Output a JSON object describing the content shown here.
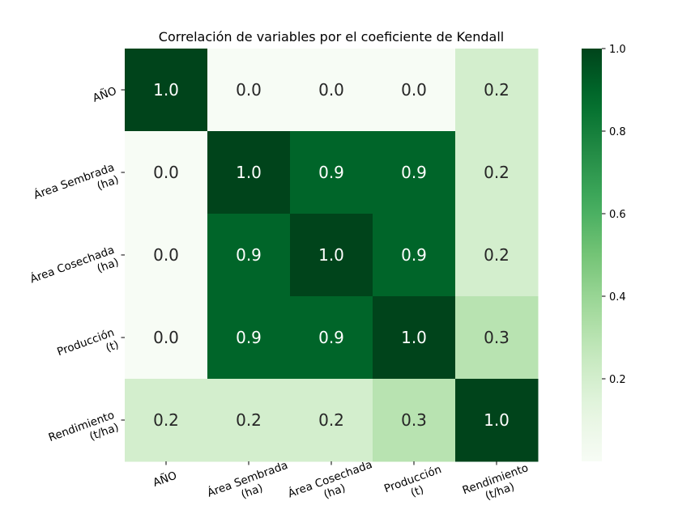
{
  "chart_data": {
    "type": "heatmap",
    "title": "Correlación de variables por el coeficiente de Kendall",
    "rows": [
      [
        "AÑO"
      ],
      [
        "Área Sembrada",
        "(ha)"
      ],
      [
        "Área Cosechada",
        "(ha)"
      ],
      [
        "Producción",
        "(t)"
      ],
      [
        "Rendimiento",
        "(t/ha)"
      ]
    ],
    "columns": [
      [
        "AÑO"
      ],
      [
        "Área Sembrada",
        "(ha)"
      ],
      [
        "Área Cosechada",
        "(ha)"
      ],
      [
        "Producción",
        "(t)"
      ],
      [
        "Rendimiento",
        "(t/ha)"
      ]
    ],
    "values": [
      [
        1.0,
        0.0,
        0.0,
        0.0,
        0.2
      ],
      [
        0.0,
        1.0,
        0.9,
        0.9,
        0.2
      ],
      [
        0.0,
        0.9,
        1.0,
        0.9,
        0.2
      ],
      [
        0.0,
        0.9,
        0.9,
        1.0,
        0.3
      ],
      [
        0.2,
        0.2,
        0.2,
        0.3,
        1.0
      ]
    ],
    "annotation_format": "0.0",
    "colormap": "Greens",
    "colorbar": {
      "min": 0.0,
      "max": 1.0,
      "ticks": [
        0.2,
        0.4,
        0.6,
        0.8,
        1.0
      ],
      "tick_labels": [
        "0.2",
        "0.4",
        "0.6",
        "0.8",
        "1.0"
      ]
    }
  }
}
